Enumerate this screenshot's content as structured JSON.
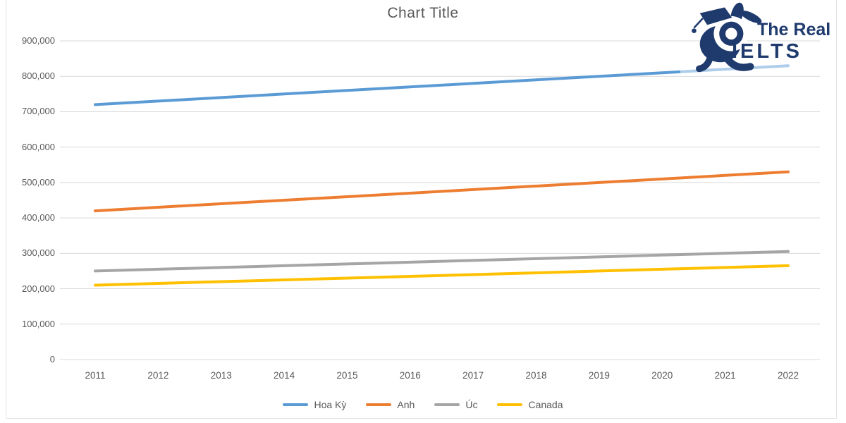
{
  "title": "Chart Title",
  "logo": {
    "line1": "The Real",
    "line2": "IELTS",
    "color": "#1f3a6d",
    "mascot_icon": "rabbit-with-graduation-cap"
  },
  "colors": {
    "grid": "#d9d9d9",
    "axis_text": "#595959",
    "title_text": "#595959",
    "background": "#ffffff"
  },
  "chart_data": {
    "type": "line",
    "title": "Chart Title",
    "xlabel": "",
    "ylabel": "",
    "grid": true,
    "legend_position": "bottom",
    "ylim": [
      0,
      900000
    ],
    "ytick_step": 100000,
    "ytick_labels": [
      "0",
      "100,000",
      "200,000",
      "300,000",
      "400,000",
      "500,000",
      "600,000",
      "700,000",
      "800,000",
      "900,000"
    ],
    "categories": [
      "2011",
      "2012",
      "2013",
      "2014",
      "2015",
      "2016",
      "2017",
      "2018",
      "2019",
      "2020",
      "2021",
      "2022"
    ],
    "series": [
      {
        "name": "Hoa Kỳ",
        "color": "#5b9bd5",
        "values": [
          720000,
          730000,
          740000,
          750000,
          760000,
          770000,
          780000,
          790000,
          800000,
          810000,
          820000,
          830000
        ]
      },
      {
        "name": "Anh",
        "color": "#ed7d31",
        "values": [
          420000,
          430000,
          440000,
          450000,
          460000,
          470000,
          480000,
          490000,
          500000,
          510000,
          520000,
          530000
        ]
      },
      {
        "name": "Úc",
        "color": "#a5a5a5",
        "values": [
          250000,
          255000,
          260000,
          265000,
          270000,
          275000,
          280000,
          285000,
          290000,
          295000,
          300000,
          305000
        ]
      },
      {
        "name": "Canada",
        "color": "#ffc000",
        "values": [
          210000,
          215000,
          220000,
          225000,
          230000,
          235000,
          240000,
          245000,
          250000,
          255000,
          260000,
          265000
        ]
      }
    ]
  }
}
